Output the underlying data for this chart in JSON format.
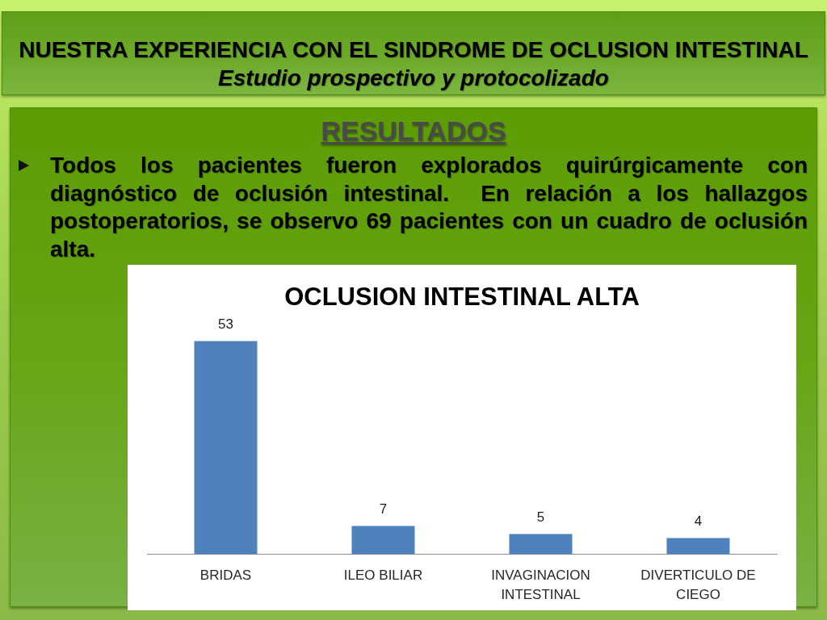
{
  "chart_data": {
    "type": "bar",
    "title": "OCLUSION INTESTINAL ALTA",
    "annotations": [
      "NUESTRA EXPERIENCIA CON EL SINDROME DE OCLUSION INTESTINAL",
      "Estudio prospectivo y protocolizado",
      "RESULTADOS",
      "Todos los pacientes fueron explorados quirúrgicamente con diagnóstico de oclusión intestinal.  En relación a los hallazgos postoperatorios, se observo 69 pacientes con un cuadro de oclusión alta."
    ],
    "categories": [
      "BRIDAS",
      "ILEO BILIAR",
      "INVAGINACION INTESTINAL",
      "DIVERTICULO DE CIEGO"
    ],
    "values": [
      53,
      7,
      5,
      4
    ],
    "color": "#4f81bd",
    "data_labels": true,
    "tick_labels": "x"
  }
}
